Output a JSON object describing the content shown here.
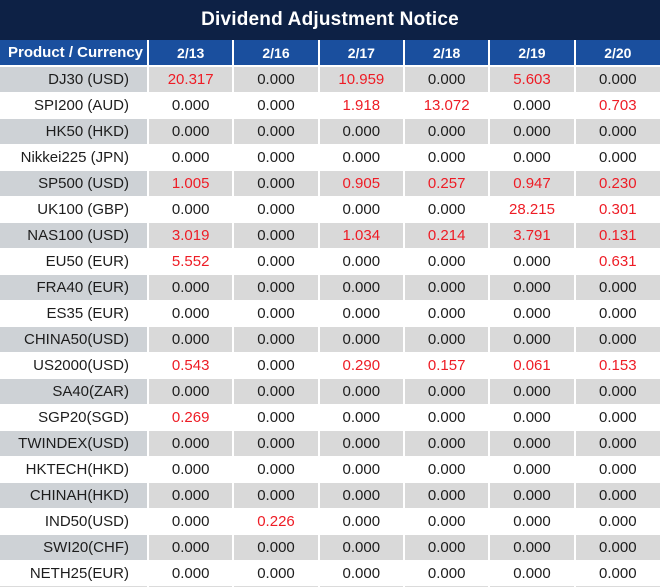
{
  "title_bar": {
    "title": "Dividend Adjustment Notice"
  },
  "colors": {
    "title_bg": "#0D2145",
    "header_bg": "#1A4F9E",
    "row_alt_bg": "#D9D9D9",
    "product_alt_bg": "#CED2D6",
    "value_red": "#EE1C25",
    "value_black": "#1D1D1D",
    "header_text": "#FFFFFF"
  },
  "chart_data": {
    "type": "table",
    "title": "Dividend Adjustment Notice",
    "columns": [
      "Product / Currency",
      "2/13",
      "2/16",
      "2/17",
      "2/18",
      "2/19",
      "2/20"
    ],
    "value_color_rule": "non-zero values are red, zero values are black",
    "rows": [
      {
        "product": "DJ30 (USD)",
        "values": [
          "20.317",
          "0.000",
          "10.959",
          "0.000",
          "5.603",
          "0.000"
        ]
      },
      {
        "product": "SPI200 (AUD)",
        "values": [
          "0.000",
          "0.000",
          "1.918",
          "13.072",
          "0.000",
          "0.703"
        ]
      },
      {
        "product": "HK50 (HKD)",
        "values": [
          "0.000",
          "0.000",
          "0.000",
          "0.000",
          "0.000",
          "0.000"
        ]
      },
      {
        "product": "Nikkei225 (JPN)",
        "values": [
          "0.000",
          "0.000",
          "0.000",
          "0.000",
          "0.000",
          "0.000"
        ]
      },
      {
        "product": "SP500 (USD)",
        "values": [
          "1.005",
          "0.000",
          "0.905",
          "0.257",
          "0.947",
          "0.230"
        ]
      },
      {
        "product": "UK100 (GBP)",
        "values": [
          "0.000",
          "0.000",
          "0.000",
          "0.000",
          "28.215",
          "0.301"
        ]
      },
      {
        "product": "NAS100 (USD)",
        "values": [
          "3.019",
          "0.000",
          "1.034",
          "0.214",
          "3.791",
          "0.131"
        ]
      },
      {
        "product": "EU50 (EUR)",
        "values": [
          "5.552",
          "0.000",
          "0.000",
          "0.000",
          "0.000",
          "0.631"
        ]
      },
      {
        "product": "FRA40 (EUR)",
        "values": [
          "0.000",
          "0.000",
          "0.000",
          "0.000",
          "0.000",
          "0.000"
        ]
      },
      {
        "product": "ES35 (EUR)",
        "values": [
          "0.000",
          "0.000",
          "0.000",
          "0.000",
          "0.000",
          "0.000"
        ]
      },
      {
        "product": "CHINA50(USD)",
        "values": [
          "0.000",
          "0.000",
          "0.000",
          "0.000",
          "0.000",
          "0.000"
        ]
      },
      {
        "product": "US2000(USD)",
        "values": [
          "0.543",
          "0.000",
          "0.290",
          "0.157",
          "0.061",
          "0.153"
        ]
      },
      {
        "product": "SA40(ZAR)",
        "values": [
          "0.000",
          "0.000",
          "0.000",
          "0.000",
          "0.000",
          "0.000"
        ]
      },
      {
        "product": "SGP20(SGD)",
        "values": [
          "0.269",
          "0.000",
          "0.000",
          "0.000",
          "0.000",
          "0.000"
        ]
      },
      {
        "product": "TWINDEX(USD)",
        "values": [
          "0.000",
          "0.000",
          "0.000",
          "0.000",
          "0.000",
          "0.000"
        ]
      },
      {
        "product": "HKTECH(HKD)",
        "values": [
          "0.000",
          "0.000",
          "0.000",
          "0.000",
          "0.000",
          "0.000"
        ]
      },
      {
        "product": "CHINAH(HKD)",
        "values": [
          "0.000",
          "0.000",
          "0.000",
          "0.000",
          "0.000",
          "0.000"
        ]
      },
      {
        "product": "IND50(USD)",
        "values": [
          "0.000",
          "0.226",
          "0.000",
          "0.000",
          "0.000",
          "0.000"
        ]
      },
      {
        "product": "SWI20(CHF)",
        "values": [
          "0.000",
          "0.000",
          "0.000",
          "0.000",
          "0.000",
          "0.000"
        ]
      },
      {
        "product": "NETH25(EUR)",
        "values": [
          "0.000",
          "0.000",
          "0.000",
          "0.000",
          "0.000",
          "0.000"
        ]
      }
    ]
  }
}
